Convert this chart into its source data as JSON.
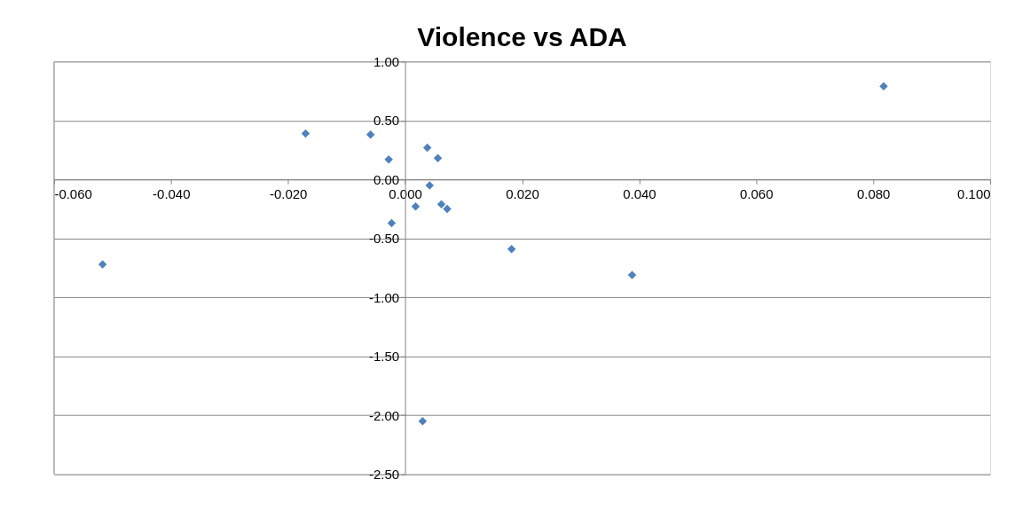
{
  "chart_data": {
    "type": "scatter",
    "title": "Violence vs ADA",
    "x": [
      -0.0517,
      -0.017,
      -0.0059,
      -0.0028,
      -0.0023,
      0.0018,
      0.0038,
      0.0042,
      0.0056,
      0.0062,
      0.0072,
      0.0182,
      0.0388,
      0.0818,
      0.003
    ],
    "series": [
      {
        "color": "#4f81bd",
        "values": [
          -0.72,
          0.39,
          0.38,
          0.17,
          -0.37,
          -0.23,
          0.27,
          -0.05,
          0.18,
          -0.21,
          -0.25,
          -0.59,
          -0.81,
          0.79,
          -2.05
        ]
      }
    ],
    "xlim": [
      -0.06,
      0.1
    ],
    "xticks": [
      {
        "value": -0.06,
        "label": "-0.060"
      },
      {
        "value": -0.04,
        "label": "-0.040"
      },
      {
        "value": -0.02,
        "label": "-0.020"
      },
      {
        "value": 0,
        "label": "0.000"
      },
      {
        "value": 0.02,
        "label": "0.020"
      },
      {
        "value": 0.04,
        "label": "0.040"
      },
      {
        "value": 0.06,
        "label": "0.060"
      },
      {
        "value": 0.08,
        "label": "0.080"
      },
      {
        "value": 0.1,
        "label": "0.100"
      }
    ],
    "ylim": [
      -2.5,
      1.0
    ],
    "yticks": [
      {
        "value": -2.5,
        "label": "-2.50"
      },
      {
        "value": -2.0,
        "label": "-2.00"
      },
      {
        "value": -1.5,
        "label": "-1.50"
      },
      {
        "value": -1.0,
        "label": "-1.00"
      },
      {
        "value": -0.5,
        "label": "-0.50"
      },
      {
        "value": 0,
        "label": "0.00"
      },
      {
        "value": 0.5,
        "label": "0.50"
      },
      {
        "value": 1.0,
        "label": "1.00"
      }
    ],
    "grid": "y",
    "marker": "diamond",
    "legend": false
  }
}
